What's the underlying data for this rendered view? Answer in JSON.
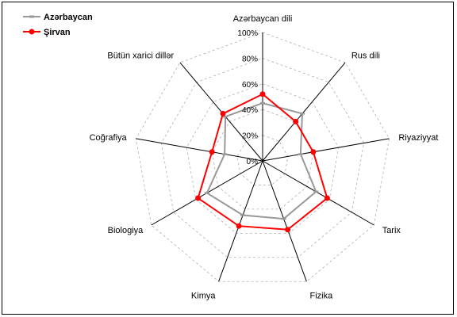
{
  "chart_data": {
    "type": "radar",
    "categories": [
      "Azərbaycan dili",
      "Rus dili",
      "Riyaziyyat",
      "Tarix",
      "Fizika",
      "Kimya",
      "Biologiya",
      "Coğrafiya",
      "Bütün xarici dillər"
    ],
    "series": [
      {
        "name": "Azərbaycan",
        "color": "#999999",
        "marker": "dash",
        "values": [
          45,
          48,
          30,
          48,
          48,
          45,
          50,
          30,
          45
        ]
      },
      {
        "name": "Şirvan",
        "color": "#ff0000",
        "marker": "circle",
        "values": [
          52,
          40,
          40,
          58,
          57,
          54,
          58,
          40,
          48
        ]
      }
    ],
    "rlim": [
      0,
      100
    ],
    "ticks": [
      "0%",
      "20%",
      "40%",
      "60%",
      "80%",
      "100%"
    ],
    "grid": true,
    "legend": "top-left"
  }
}
